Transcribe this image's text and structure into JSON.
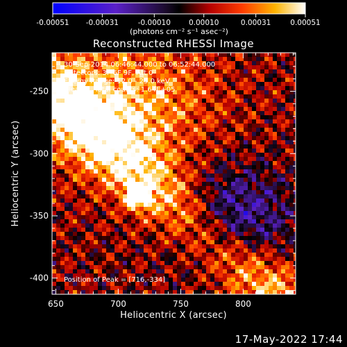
{
  "chart_data": {
    "type": "heatmap",
    "title": "Reconstructed RHESSI Image",
    "xlabel": "Heliocentric X (arcsec)",
    "ylabel": "Heliocentric Y (arcsec)",
    "xlim": [
      647,
      842
    ],
    "ylim": [
      -413,
      -219
    ],
    "x_ticks": [
      650,
      700,
      750,
      800
    ],
    "y_ticks": [
      -250,
      -300,
      -350,
      -400
    ],
    "colorbar": {
      "ticks": [
        "-0.00051",
        "-0.00031",
        "-0.00010",
        "0.00010",
        "0.00031",
        "0.00051"
      ],
      "tick_values": [
        -0.00051,
        -0.00031,
        -0.0001,
        0.0001,
        0.00031,
        0.00051
      ],
      "range": [
        -0.00051,
        0.00051
      ],
      "unit_label": "(photons cm⁻² s⁻¹ asec⁻²)",
      "colormap": "blue-purple-black-red-orange-yellow-white"
    },
    "annotations": [
      "30-Sep-2014 06:46:44.000 to 06:52:44.000",
      "Detectors: 3F 6F 9F, Att 0",
      "Energy Range: 12.0 - 25.0 keV",
      "Clean     Total counts: 1.64E+05"
    ],
    "peak_label": "Position of Peak = [716,-334]",
    "peak_position": [
      716,
      -334
    ],
    "grid": false
  },
  "footer": {
    "timestamp": "17-May-2022 17:44"
  },
  "colors": {
    "background": "#000000",
    "axes": "#ffffff",
    "text": "#ffffff"
  }
}
